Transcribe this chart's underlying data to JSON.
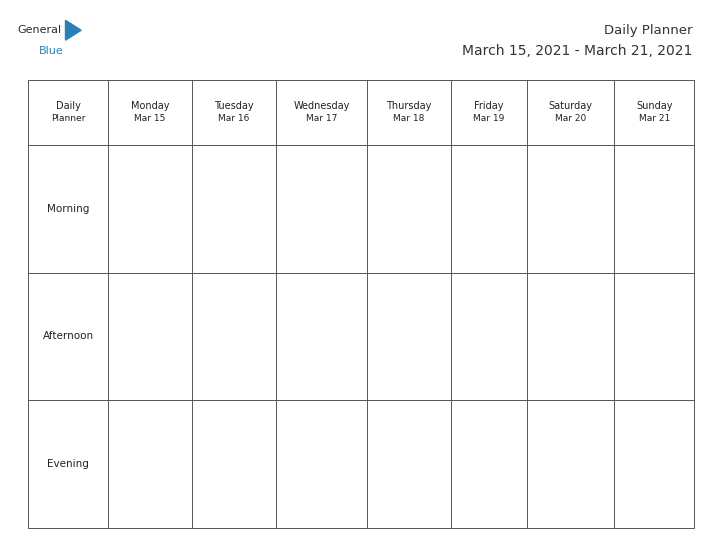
{
  "title_line1": "Daily Planner",
  "title_line2": "March 15, 2021 - March 21, 2021",
  "columns": [
    "Daily\nPlanner",
    "Monday\nMar 15",
    "Tuesday\nMar 16",
    "Wednesday\nMar 17",
    "Thursday\nMar 18",
    "Friday\nMar 19",
    "Saturday\nMar 20",
    "Sunday\nMar 21"
  ],
  "rows": [
    "Morning",
    "Afternoon",
    "Evening"
  ],
  "background_color": "#ffffff",
  "grid_color": "#555555",
  "text_color": "#222222",
  "logo_color_general": "#2d2d2d",
  "logo_color_blue": "#2980b9",
  "logo_triangle_color": "#2980b9",
  "title_fontsize": 9.5,
  "header_fontsize": 7,
  "row_label_fontsize": 7.5
}
